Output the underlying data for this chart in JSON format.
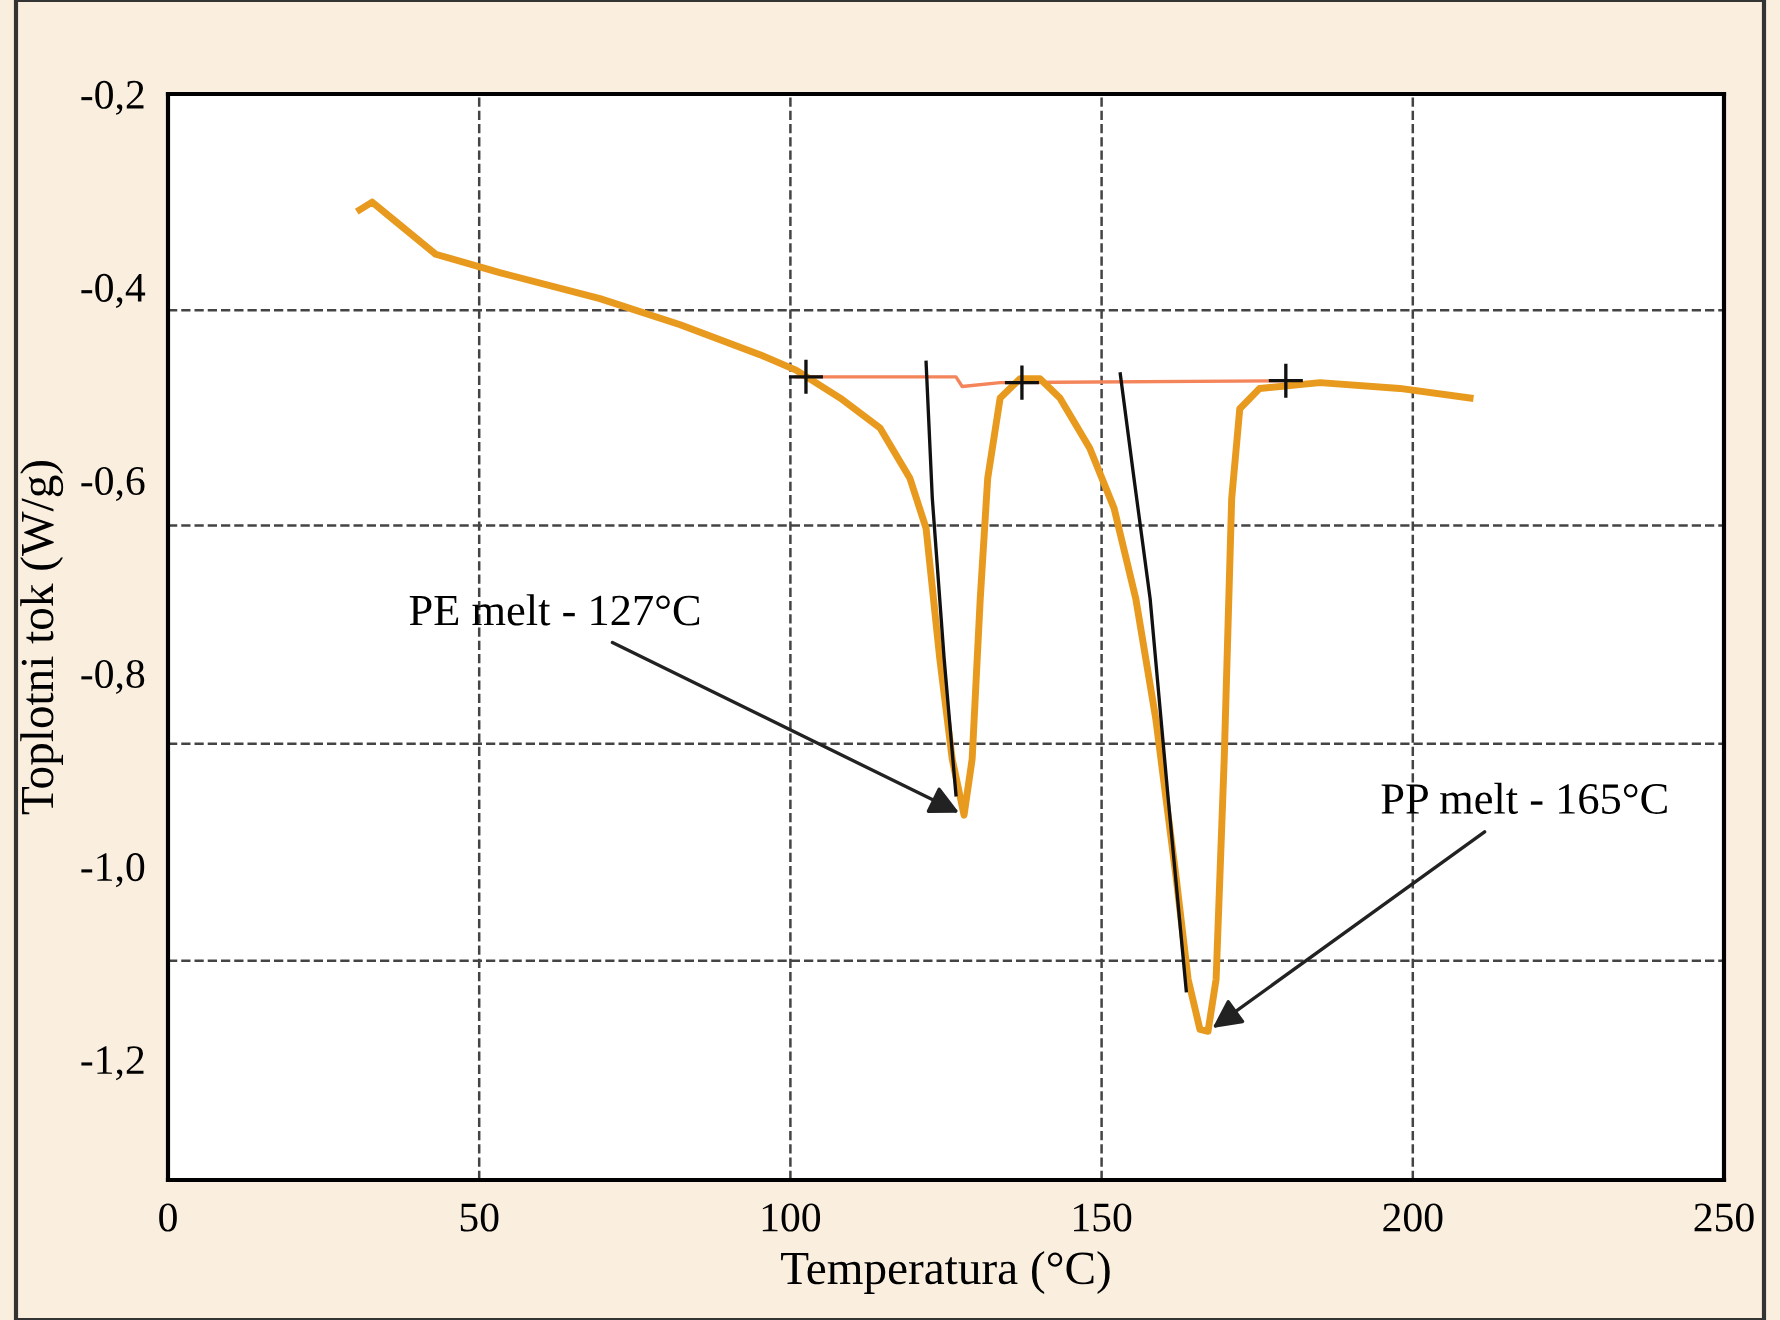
{
  "chart_data": {
    "type": "line",
    "xlabel": "Temperatura (°C)",
    "ylabel": "Toplotni tok (W/g)",
    "xlim": [
      0,
      250
    ],
    "xticks": [
      0,
      50,
      100,
      150,
      200,
      250
    ],
    "ylim": [
      -1.325,
      -0.2
    ],
    "yticks": [
      {
        "value": -0.2,
        "label": "-0,2"
      },
      {
        "value": -0.4,
        "label": "-0,4"
      },
      {
        "value": -0.6,
        "label": "-0,6"
      },
      {
        "value": -0.8,
        "label": "-0,8"
      },
      {
        "value": -1.0,
        "label": "-1,0"
      },
      {
        "value": -1.2,
        "label": "-1,2"
      }
    ],
    "grid": "x",
    "legend": false,
    "ref_lines": [
      {
        "axis": "y",
        "value": -0.424,
        "line_style": "dashed",
        "color": "#444444"
      },
      {
        "axis": "y",
        "value": -0.647,
        "line_style": "dashed",
        "color": "#444444"
      },
      {
        "axis": "y",
        "value": -0.873,
        "line_style": "dashed",
        "color": "#444444"
      },
      {
        "axis": "y",
        "value": -1.098,
        "line_style": "dashed",
        "color": "#444444"
      }
    ],
    "series": [
      {
        "color": "#f4845a",
        "x": [
          100.9,
          126.6,
          127.6,
          133.7,
          180.3
        ],
        "values": [
          -0.493,
          -0.493,
          -0.503,
          -0.499,
          -0.497
        ]
      },
      {
        "color": "#e89a1e",
        "x": [
          30.8,
          32.8,
          36,
          43,
          53.3,
          69.4,
          82.3,
          95.1,
          100.9,
          108,
          114.4,
          119.2,
          121.8,
          124,
          126,
          127.9,
          129.2,
          130.5,
          131.7,
          133.7,
          136.9,
          140.1,
          143.3,
          148.1,
          152,
          155.5,
          158.7,
          162,
          163.9,
          165.8,
          167.1,
          168.4,
          169.7,
          170.9,
          172.2,
          175.4,
          185.1,
          197.9,
          209.2
        ],
        "values": [
          -0.32,
          -0.312,
          -0.329,
          -0.366,
          -0.385,
          -0.412,
          -0.439,
          -0.47,
          -0.486,
          -0.515,
          -0.546,
          -0.598,
          -0.65,
          -0.785,
          -0.889,
          -0.947,
          -0.889,
          -0.723,
          -0.598,
          -0.515,
          -0.495,
          -0.495,
          -0.515,
          -0.567,
          -0.629,
          -0.723,
          -0.847,
          -1.013,
          -1.117,
          -1.169,
          -1.171,
          -1.117,
          -0.889,
          -0.619,
          -0.526,
          -0.505,
          -0.499,
          -0.505,
          -0.515
        ]
      },
      {
        "color": "#111111",
        "x": [
          121.8,
          122.8,
          124.7,
          126.6
        ],
        "values": [
          -0.478,
          -0.619,
          -0.785,
          -0.926
        ]
      },
      {
        "color": "#111111",
        "x": [
          153,
          155.2,
          157.8,
          160.7,
          163.6
        ],
        "values": [
          -0.49,
          -0.598,
          -0.723,
          -0.93,
          -1.129
        ]
      },
      {
        "type": "scatter",
        "marker": "cross",
        "color": "#111111",
        "x": [
          102.5,
          137.2,
          179.6
        ],
        "values": [
          -0.493,
          -0.499,
          -0.497
        ]
      }
    ],
    "annotations": [
      {
        "text": "PE melt - 127°C",
        "x": 127.9,
        "y": -0.947
      },
      {
        "text": "PP melt - 165°C",
        "x": 167.1,
        "y": -1.171
      }
    ]
  }
}
